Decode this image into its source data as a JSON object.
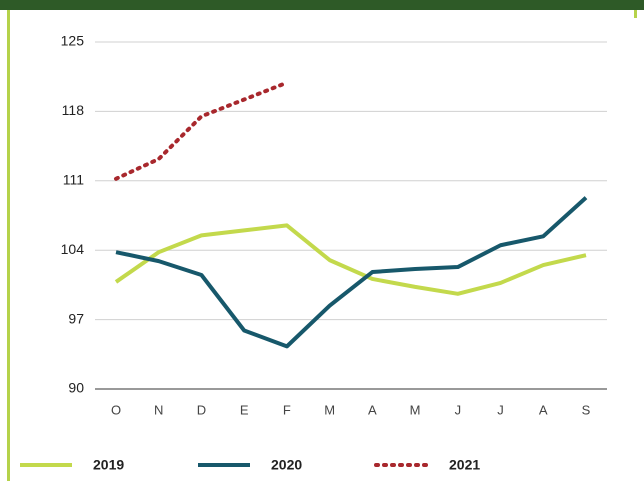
{
  "chart_data": {
    "type": "line",
    "categories": [
      "O",
      "N",
      "D",
      "E",
      "F",
      "M",
      "A",
      "M",
      "J",
      "J",
      "A",
      "S"
    ],
    "series": [
      {
        "name": "2019",
        "color": "#c3d94c",
        "style": "solid",
        "values": [
          100.8,
          103.8,
          105.5,
          106.0,
          106.5,
          103.0,
          101.1,
          100.3,
          99.6,
          100.7,
          102.5,
          103.5
        ]
      },
      {
        "name": "2020",
        "color": "#17586b",
        "style": "solid",
        "values": [
          103.8,
          102.9,
          101.5,
          95.9,
          94.3,
          98.4,
          101.8,
          102.1,
          102.3,
          104.5,
          105.4,
          109.3
        ]
      },
      {
        "name": "2021",
        "color": "#a8282d",
        "style": "dotted",
        "values": [
          111.2,
          113.2,
          117.5,
          119.2,
          120.9,
          null,
          null,
          null,
          null,
          null,
          null,
          null
        ]
      }
    ],
    "ylim": [
      90,
      125
    ],
    "yticks": [
      90,
      97,
      104,
      111,
      118,
      125
    ],
    "grid": true
  }
}
